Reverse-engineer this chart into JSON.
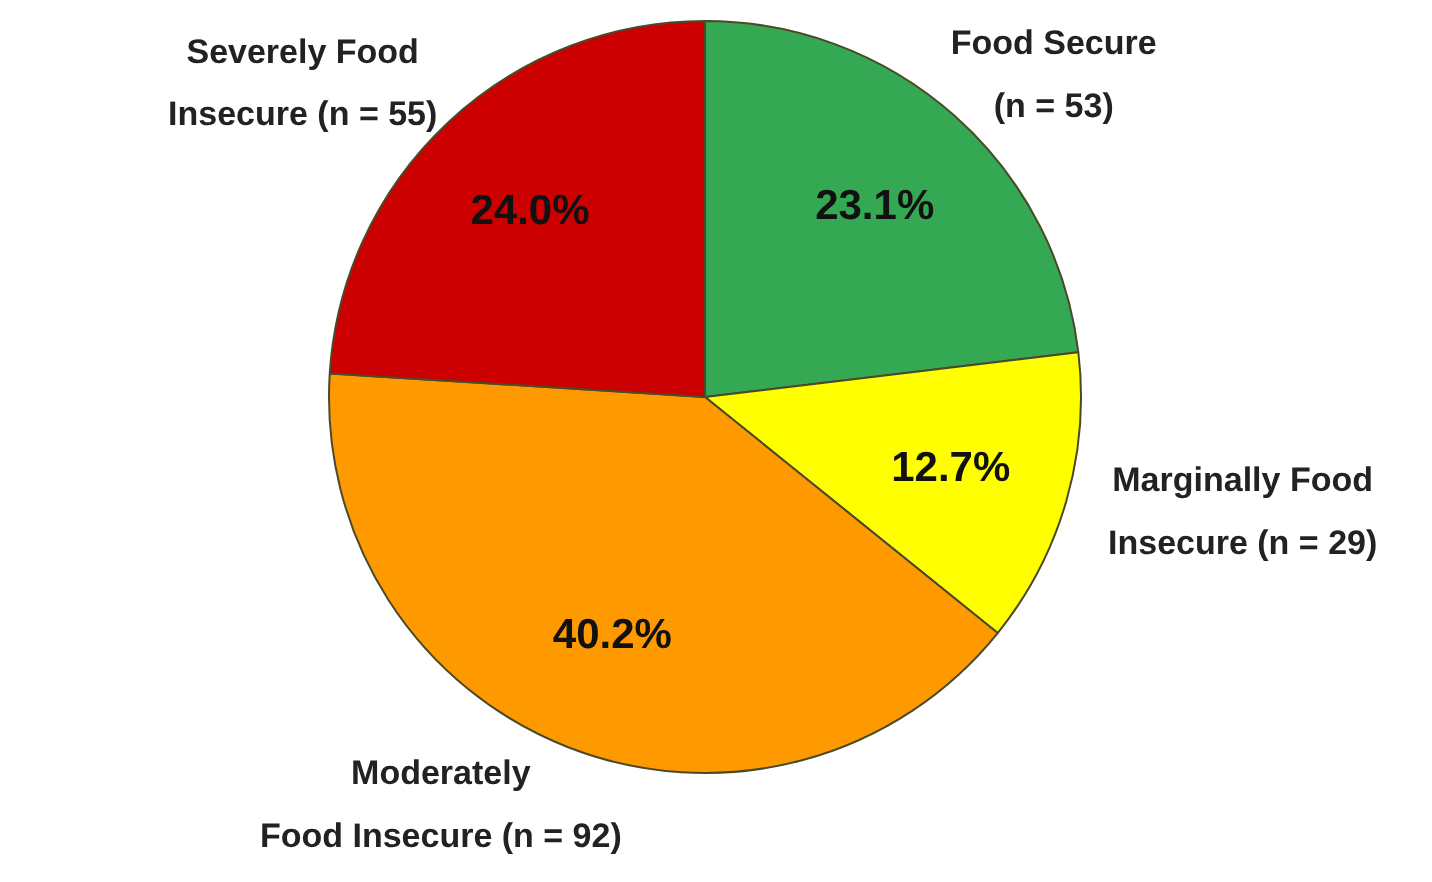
{
  "chart_data": {
    "type": "pie",
    "categories": [
      "Food Secure\n(n = 53)",
      "Marginally Food\nInsecure (n = 29)",
      "Moderately\nFood Insecure (n = 92)",
      "Severely Food\nInsecure (n = 55)"
    ],
    "values": [
      23.1,
      12.7,
      40.2,
      24.0
    ],
    "colors": [
      "#34a853",
      "#ffff00",
      "#ff9900",
      "#cc0000"
    ],
    "value_labels": [
      "23.1%",
      "12.7%",
      "40.2%",
      "24.0%"
    ]
  }
}
